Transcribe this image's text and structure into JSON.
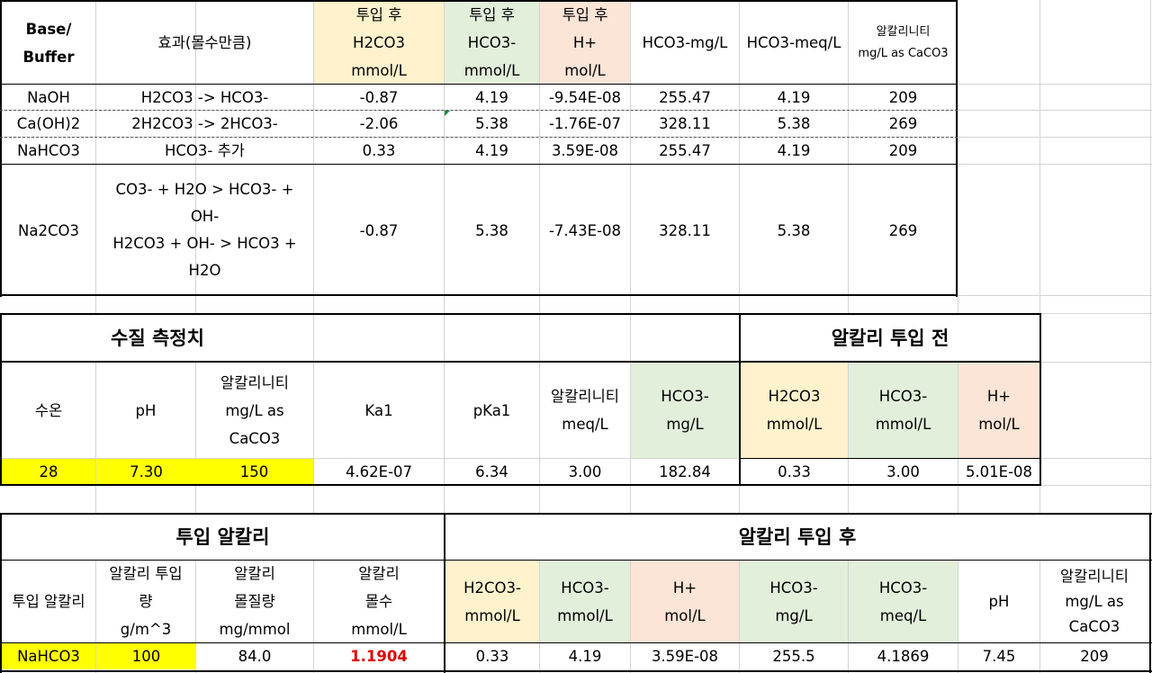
{
  "table1": {
    "headers": {
      "base": "Base/\nBuffer",
      "effect": "효과(몰수만큼)",
      "h2co3": "투입 후\nH2CO3\nmmol/L",
      "hco3": "투입 후\nHCO3-\nmmol/L",
      "h": "투입 후\nH+\nmol/L",
      "hco3_mgl": "HCO3-mg/L",
      "hco3_meql": "HCO3-meq/L",
      "alk": "알칼리니티\nmg/L as CaCO3"
    },
    "rows": [
      [
        "NaOH",
        "H2CO3 -> HCO3-",
        "-0.87",
        "4.19",
        "-9.54E-08",
        "255.47",
        "4.19",
        "209"
      ],
      [
        "Ca(OH)2",
        "2H2CO3 -> 2HCO3-",
        "-2.06",
        "5.38",
        "-1.76E-07",
        "328.11",
        "5.38",
        "269"
      ],
      [
        "NaHCO3",
        "HCO3- 추가",
        "0.33",
        "4.19",
        "3.59E-08",
        "255.47",
        "4.19",
        "209"
      ],
      [
        "Na2CO3",
        "CO3- + H2O > HCO3- +\nOH-\nH2CO3 + OH- > HCO3 +\nH2O",
        "-0.87",
        "5.38",
        "-7.43E-08",
        "328.11",
        "5.38",
        "269"
      ]
    ]
  },
  "table2": {
    "title_left": "수질 측정치",
    "title_right": "알칼리 투입 전",
    "headers": [
      "수온",
      "pH",
      "알칼리니티\nmg/L as\nCaCO3",
      "Ka1",
      "pKa1",
      "알칼리니티\nmeq/L",
      "HCO3-\nmg/L",
      "H2CO3\nmmol/L",
      "HCO3-\nmmol/L",
      "H+\nmol/L"
    ],
    "values": [
      "28",
      "7.30",
      "150",
      "4.62E-07",
      "6.34",
      "3.00",
      "182.84",
      "0.33",
      "3.00",
      "5.01E-08"
    ]
  },
  "table3": {
    "title_left": "투입 알칼리",
    "title_right": "알칼리 투입 후",
    "headers": [
      "투입 알칼리",
      "알칼리 투입\n량\ng/m^3",
      "알칼리\n몰질량\nmg/mmol",
      "알칼리\n몰수\nmmol/L",
      "H2CO3-\nmmol/L",
      "HCO3-\nmmol/L",
      "H+\nmol/L",
      "HCO3-\nmg/L",
      "HCO3-\nmeq/L",
      "pH",
      "알칼리니티\nmg/L as\nCaCO3"
    ],
    "values": [
      "NaHCO3",
      "100",
      "84.0",
      "1.1904",
      "0.33",
      "4.19",
      "3.59E-08",
      "255.5",
      "4.1869",
      "7.45",
      "209"
    ]
  },
  "colors": {
    "yellow": "#ffff00",
    "cream": "#fff2cc",
    "mint": "#e2efda",
    "peach": "#fce4d6",
    "red_value": "#e00000"
  }
}
